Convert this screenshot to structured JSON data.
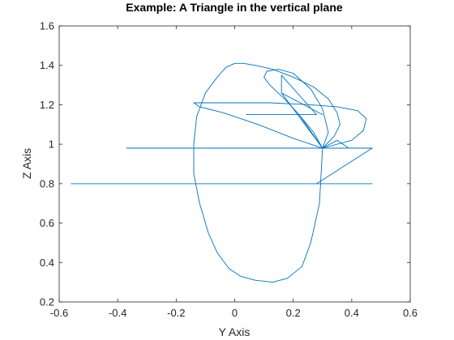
{
  "chart_data": {
    "type": "line",
    "title": "Example: A Triangle in the vertical plane",
    "xlabel": "Y Axis",
    "ylabel": "Z Axis",
    "xlim": [
      -0.6,
      0.6
    ],
    "ylim": [
      0.2,
      1.6
    ],
    "xticks": [
      -0.6,
      -0.4,
      -0.2,
      0,
      0.2,
      0.4,
      0.6
    ],
    "xtick_labels": [
      "-0.6",
      "-0.4",
      "-0.2",
      "0",
      "0.2",
      "0.4",
      "0.6"
    ],
    "yticks": [
      0.2,
      0.4,
      0.6,
      0.8,
      1.0,
      1.2,
      1.4,
      1.6
    ],
    "ytick_labels": [
      "0.2",
      "0.4",
      "0.6",
      "0.8",
      "1",
      "1.2",
      "1.4",
      "1.6"
    ],
    "grid": false,
    "line_color": "#0072BD",
    "series": [
      {
        "name": "",
        "x": [
          -0.56,
          0.47,
          0.28,
          0.47,
          -0.37,
          0.3,
          0.22,
          0.04,
          0.28,
          0.16,
          0.16,
          0.3,
          0.16,
          0.3,
          0.35,
          0.39,
          0.3
        ],
        "y": [
          0.8,
          0.8,
          0.8,
          0.98,
          0.98,
          0.98,
          1.15,
          1.15,
          1.15,
          1.35,
          1.26,
          1.15,
          1.26,
          0.98,
          1.02,
          0.98,
          0.98
        ]
      },
      {
        "name": "",
        "x": [
          0.3,
          0.4,
          0.44,
          0.45,
          0.42,
          0.35,
          0.26,
          0.12,
          -0.02,
          -0.1,
          -0.14,
          -0.12,
          -0.04,
          0.08,
          0.2,
          0.28,
          0.3
        ],
        "y": [
          0.98,
          1.02,
          1.07,
          1.13,
          1.17,
          1.19,
          1.2,
          1.21,
          1.21,
          1.21,
          1.21,
          1.19,
          1.16,
          1.1,
          1.03,
          0.99,
          0.98
        ]
      },
      {
        "name": "",
        "x": [
          0.3,
          0.34,
          0.36,
          0.35,
          0.32,
          0.27,
          0.2,
          0.13,
          0.07,
          0.03,
          0.0,
          -0.03,
          -0.06,
          -0.1,
          -0.13,
          -0.14,
          -0.14,
          -0.12,
          -0.09,
          -0.06,
          -0.02,
          0.02,
          0.07,
          0.13,
          0.18,
          0.23,
          0.26,
          0.29,
          0.3
        ],
        "y": [
          0.98,
          1.04,
          1.1,
          1.16,
          1.23,
          1.29,
          1.34,
          1.38,
          1.4,
          1.41,
          1.41,
          1.39,
          1.34,
          1.26,
          1.14,
          1.0,
          0.85,
          0.7,
          0.55,
          0.45,
          0.37,
          0.33,
          0.31,
          0.3,
          0.32,
          0.38,
          0.5,
          0.7,
          0.98
        ]
      },
      {
        "name": "",
        "x": [
          0.3,
          0.27,
          0.22,
          0.17,
          0.12,
          0.1,
          0.11,
          0.15,
          0.2,
          0.26,
          0.3,
          0.32,
          0.3
        ],
        "y": [
          0.98,
          1.06,
          1.15,
          1.23,
          1.3,
          1.34,
          1.37,
          1.38,
          1.36,
          1.28,
          1.18,
          1.06,
          0.98
        ]
      }
    ]
  }
}
